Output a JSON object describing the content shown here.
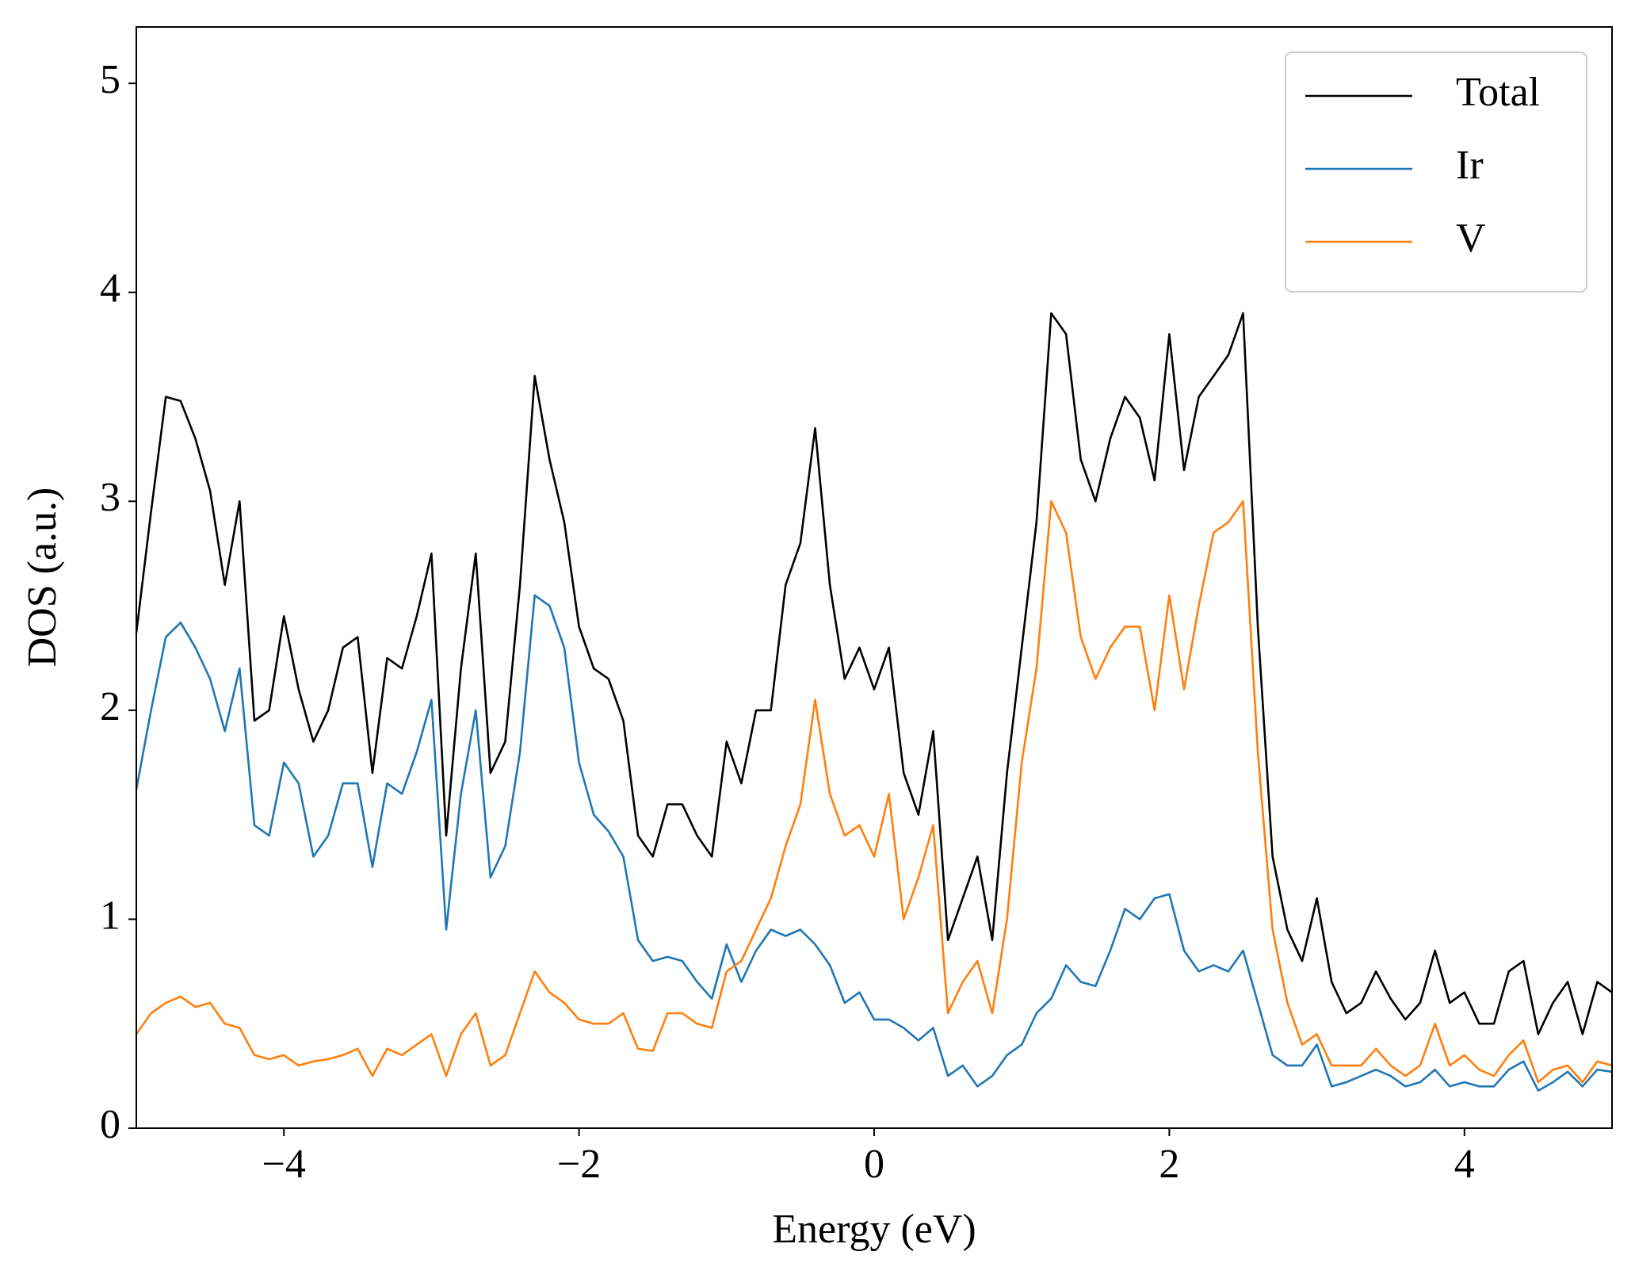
{
  "chart_data": {
    "type": "line",
    "xlabel": "Energy (eV)",
    "ylabel": "DOS (a.u.)",
    "x": [
      -5.0,
      -4.9,
      -4.8,
      -4.7,
      -4.6,
      -4.5,
      -4.4,
      -4.3,
      -4.2,
      -4.1,
      -4.0,
      -3.9,
      -3.8,
      -3.7,
      -3.6,
      -3.5,
      -3.4,
      -3.3,
      -3.2,
      -3.1,
      -3.0,
      -2.9,
      -2.8,
      -2.7,
      -2.6,
      -2.5,
      -2.4,
      -2.3,
      -2.2,
      -2.1,
      -2.0,
      -1.9,
      -1.8,
      -1.7,
      -1.6,
      -1.5,
      -1.4,
      -1.3,
      -1.2,
      -1.1,
      -1.0,
      -0.9,
      -0.8,
      -0.7,
      -0.6,
      -0.5,
      -0.4,
      -0.3,
      -0.2,
      -0.1,
      0.0,
      0.1,
      0.2,
      0.3,
      0.4,
      0.5,
      0.6,
      0.7,
      0.8,
      0.9,
      1.0,
      1.1,
      1.2,
      1.3,
      1.4,
      1.5,
      1.6,
      1.7,
      1.8,
      1.9,
      2.0,
      2.1,
      2.2,
      2.3,
      2.4,
      2.5,
      2.6,
      2.7,
      2.8,
      2.9,
      3.0,
      3.1,
      3.2,
      3.3,
      3.4,
      3.5,
      3.6,
      3.7,
      3.8,
      3.9,
      4.0,
      4.1,
      4.2,
      4.3,
      4.4,
      4.5,
      4.6,
      4.7,
      4.8,
      4.9,
      5.0
    ],
    "series": [
      {
        "name": "Total",
        "color": "#000000",
        "values": [
          2.37,
          2.95,
          3.5,
          3.48,
          3.3,
          3.05,
          2.6,
          3.0,
          1.95,
          2.0,
          2.45,
          2.1,
          1.85,
          2.0,
          2.3,
          2.35,
          1.7,
          2.25,
          2.2,
          2.45,
          2.75,
          1.4,
          2.2,
          2.75,
          1.7,
          1.85,
          2.6,
          3.6,
          3.2,
          2.9,
          2.4,
          2.2,
          2.15,
          1.95,
          1.4,
          1.3,
          1.55,
          1.55,
          1.4,
          1.3,
          1.85,
          1.65,
          2.0,
          2.0,
          2.6,
          2.8,
          3.35,
          2.6,
          2.15,
          2.3,
          2.1,
          2.3,
          1.7,
          1.5,
          1.9,
          0.9,
          1.1,
          1.3,
          0.9,
          1.7,
          2.3,
          2.9,
          3.9,
          3.8,
          3.2,
          3.0,
          3.3,
          3.5,
          3.4,
          3.1,
          3.8,
          3.15,
          3.5,
          3.6,
          3.7,
          3.9,
          2.4,
          1.3,
          0.95,
          0.8,
          1.1,
          0.7,
          0.55,
          0.6,
          0.75,
          0.62,
          0.52,
          0.6,
          0.85,
          0.6,
          0.65,
          0.5,
          0.5,
          0.75,
          0.8,
          0.45,
          0.6,
          0.7,
          0.45,
          0.7,
          0.65
        ]
      },
      {
        "name": "Ir",
        "color": "#1f77b4",
        "values": [
          1.62,
          2.0,
          2.35,
          2.42,
          2.3,
          2.15,
          1.9,
          2.2,
          1.45,
          1.4,
          1.75,
          1.65,
          1.3,
          1.4,
          1.65,
          1.65,
          1.25,
          1.65,
          1.6,
          1.8,
          2.05,
          0.95,
          1.6,
          2.0,
          1.2,
          1.35,
          1.8,
          2.55,
          2.5,
          2.3,
          1.75,
          1.5,
          1.42,
          1.3,
          0.9,
          0.8,
          0.82,
          0.8,
          0.7,
          0.62,
          0.88,
          0.7,
          0.85,
          0.95,
          0.92,
          0.95,
          0.88,
          0.78,
          0.6,
          0.65,
          0.52,
          0.52,
          0.48,
          0.42,
          0.48,
          0.25,
          0.3,
          0.2,
          0.25,
          0.35,
          0.4,
          0.55,
          0.62,
          0.78,
          0.7,
          0.68,
          0.85,
          1.05,
          1.0,
          1.1,
          1.12,
          0.85,
          0.75,
          0.78,
          0.75,
          0.85,
          0.6,
          0.35,
          0.3,
          0.3,
          0.4,
          0.2,
          0.22,
          0.25,
          0.28,
          0.25,
          0.2,
          0.22,
          0.28,
          0.2,
          0.22,
          0.2,
          0.2,
          0.28,
          0.32,
          0.18,
          0.22,
          0.27,
          0.2,
          0.28,
          0.27
        ]
      },
      {
        "name": "V",
        "color": "#ff7f0e",
        "values": [
          0.45,
          0.55,
          0.6,
          0.63,
          0.58,
          0.6,
          0.5,
          0.48,
          0.35,
          0.33,
          0.35,
          0.3,
          0.32,
          0.33,
          0.35,
          0.38,
          0.25,
          0.38,
          0.35,
          0.4,
          0.45,
          0.25,
          0.45,
          0.55,
          0.3,
          0.35,
          0.55,
          0.75,
          0.65,
          0.6,
          0.52,
          0.5,
          0.5,
          0.55,
          0.38,
          0.37,
          0.55,
          0.55,
          0.5,
          0.48,
          0.75,
          0.8,
          0.95,
          1.1,
          1.35,
          1.55,
          2.05,
          1.6,
          1.4,
          1.45,
          1.3,
          1.6,
          1.0,
          1.2,
          1.45,
          0.55,
          0.7,
          0.8,
          0.55,
          1.0,
          1.75,
          2.2,
          3.0,
          2.85,
          2.35,
          2.15,
          2.3,
          2.4,
          2.4,
          2.0,
          2.55,
          2.1,
          2.5,
          2.85,
          2.9,
          3.0,
          1.8,
          0.95,
          0.6,
          0.4,
          0.45,
          0.3,
          0.3,
          0.3,
          0.38,
          0.3,
          0.25,
          0.3,
          0.5,
          0.3,
          0.35,
          0.28,
          0.25,
          0.35,
          0.42,
          0.22,
          0.28,
          0.3,
          0.22,
          0.32,
          0.3
        ]
      }
    ],
    "xlim": [
      -5,
      5
    ],
    "xticks": [
      {
        "value": -4,
        "label": "−4"
      },
      {
        "value": -2,
        "label": "−2"
      },
      0,
      2,
      4
    ],
    "ylim": [
      0,
      5.27
    ],
    "yticks": [
      0,
      1,
      2,
      3,
      4,
      5
    ],
    "grid": false,
    "legend": "upper right"
  }
}
